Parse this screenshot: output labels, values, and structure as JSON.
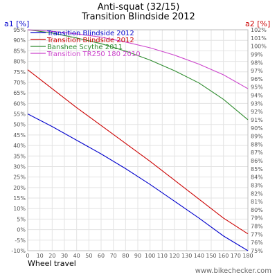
{
  "chart_data": {
    "type": "line",
    "title": "Anti-squat (32/15)",
    "subtitle": "Transition Blindside 2012",
    "xlabel": "Wheel travel",
    "ylabel_left": "a1 [%]",
    "ylabel_right": "a2 [%]",
    "xlim": [
      0,
      180
    ],
    "ylim_left": [
      -10,
      95
    ],
    "ylim_right": [
      75,
      102
    ],
    "x_ticks": [
      0,
      10,
      20,
      30,
      40,
      50,
      60,
      70,
      80,
      90,
      100,
      110,
      120,
      130,
      140,
      150,
      160,
      170,
      180
    ],
    "x_tick_labels": [
      "0",
      "10",
      "20",
      "30",
      "40",
      "50",
      "60",
      "70",
      "80",
      "90",
      "100",
      "110",
      "120",
      "130",
      "140",
      "150",
      "160",
      "170",
      "180"
    ],
    "y_left_ticks": [
      -10,
      -5,
      0,
      5,
      10,
      15,
      20,
      25,
      30,
      35,
      40,
      45,
      50,
      55,
      60,
      65,
      70,
      75,
      80,
      85,
      90,
      95
    ],
    "y_left_tick_labels": [
      "-10%",
      "-5%",
      "0%",
      "5%",
      "10%",
      "15%",
      "20%",
      "25%",
      "30%",
      "35%",
      "40%",
      "45%",
      "50%",
      "55%",
      "60%",
      "65%",
      "70%",
      "75%",
      "80%",
      "85%",
      "90%",
      "95%"
    ],
    "y_right_ticks": [
      75,
      76,
      77,
      78,
      79,
      80,
      81,
      82,
      83,
      84,
      85,
      86,
      87,
      88,
      89,
      90,
      91,
      92,
      93,
      94,
      95,
      96,
      97,
      98,
      99,
      100,
      101,
      102
    ],
    "y_right_tick_labels": [
      "75%",
      "76%",
      "77%",
      "78%",
      "79%",
      "80%",
      "81%",
      "82%",
      "83%",
      "84%",
      "85%",
      "86%",
      "87%",
      "88%",
      "89%",
      "90%",
      "91%",
      "92%",
      "93%",
      "94%",
      "95%",
      "96%",
      "97%",
      "98%",
      "99%",
      "100%",
      "101%",
      "102%"
    ],
    "grid": true,
    "legend_position": "top-left",
    "x": [
      0,
      20,
      40,
      60,
      80,
      100,
      120,
      140,
      160,
      180
    ],
    "series": [
      {
        "name": "Transition Blindside 2012",
        "color": "#0000cc",
        "axis": "left",
        "values": [
          55,
          49,
          42.5,
          36,
          29,
          21.5,
          13.5,
          5.5,
          -3,
          -10
        ]
      },
      {
        "name": "Transition Blindside 2012",
        "color": "#cc0000",
        "axis": "left",
        "values": [
          76,
          67,
          58,
          49.5,
          41,
          32.5,
          23.5,
          14.5,
          5.5,
          -2
        ]
      },
      {
        "name": "Banshee Scythe 2011",
        "color": "#2e8b2e",
        "axis": "right",
        "values": [
          102,
          101.6,
          101,
          100.3,
          99.4,
          98.3,
          97,
          95.5,
          93.5,
          91
        ]
      },
      {
        "name": "Transition TR250 180 2010",
        "color": "#cc44cc",
        "axis": "right",
        "values": [
          102,
          101.8,
          101.5,
          101.1,
          100.5,
          99.8,
          98.9,
          97.8,
          96.5,
          94.8
        ]
      }
    ]
  },
  "footer": "www.bikechecker.com"
}
